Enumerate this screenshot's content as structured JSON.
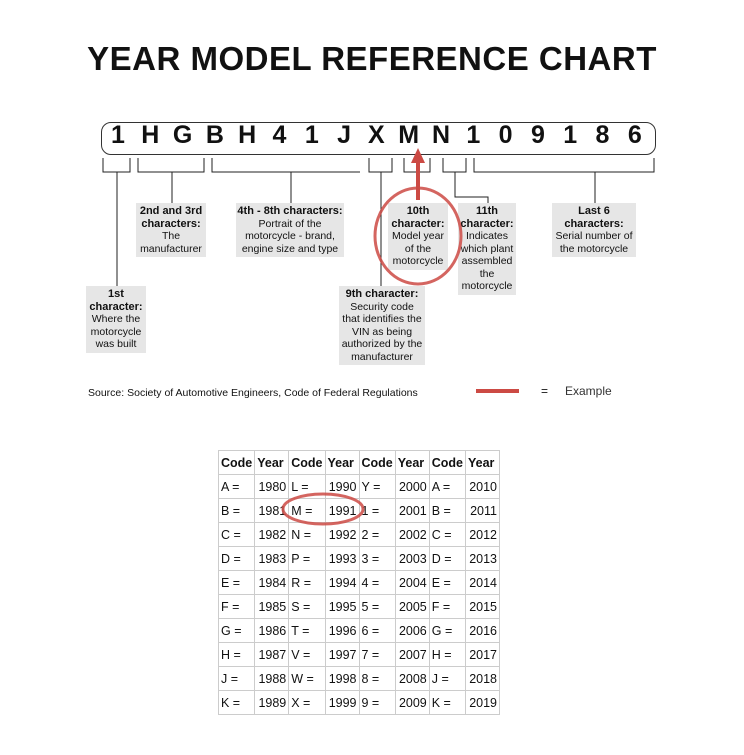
{
  "title": "YEAR MODEL REFERENCE CHART",
  "vin": [
    "1",
    "H",
    "G",
    "B",
    "H",
    "4",
    "1",
    "J",
    "X",
    "M",
    "N",
    "1",
    "0",
    "9",
    "1",
    "8",
    "6"
  ],
  "labels": {
    "first": {
      "head": "1st character:",
      "body": "Where the motorcycle was built"
    },
    "second": {
      "head": "2nd and 3rd characters:",
      "body": "The manufacturer"
    },
    "fourth": {
      "head": "4th - 8th characters:",
      "body": "Portrait of the motorcycle - brand, engine size and type"
    },
    "ninth": {
      "head": "9th character:",
      "body": "Security code that identifies the VIN as being authorized by the manufacturer"
    },
    "tenth": {
      "head": "10th character:",
      "body": "Model year of the motorcycle"
    },
    "eleventh": {
      "head": "11th character:",
      "body": "Indicates which plant assembled the motorcycle"
    },
    "last": {
      "head": "Last 6 characters:",
      "body": "Serial number of the motorcycle"
    }
  },
  "source": "Source:  Society of Automotive Engineers, Code of Federal Regulations",
  "legend": {
    "equals": "=",
    "label": "Example",
    "color": "#cc4a44"
  },
  "table": {
    "headers": [
      "Code",
      "Year",
      "Code",
      "Year",
      "Code",
      "Year",
      "Code",
      "Year"
    ],
    "rows": [
      [
        "A =",
        "1980",
        "L =",
        "1990",
        "Y =",
        "2000",
        "A =",
        "2010"
      ],
      [
        "B =",
        "1981",
        "M =",
        "1991",
        "1 =",
        "2001",
        "B =",
        "2011"
      ],
      [
        "C =",
        "1982",
        "N =",
        "1992",
        "2 =",
        "2002",
        "C =",
        "2012"
      ],
      [
        "D =",
        "1983",
        "P =",
        "1993",
        "3 =",
        "2003",
        "D =",
        "2013"
      ],
      [
        "E =",
        "1984",
        "R =",
        "1994",
        "4 =",
        "2004",
        "E =",
        "2014"
      ],
      [
        "F =",
        "1985",
        "S =",
        "1995",
        "5 =",
        "2005",
        "F =",
        "2015"
      ],
      [
        "G =",
        "1986",
        "T =",
        "1996",
        "6 =",
        "2006",
        "G =",
        "2016"
      ],
      [
        "H =",
        "1987",
        "V =",
        "1997",
        "7 =",
        "2007",
        "H =",
        "2017"
      ],
      [
        "J =",
        "1988",
        "W =",
        "1998",
        "8 =",
        "2008",
        "J =",
        "2018"
      ],
      [
        "K =",
        "1989",
        "X =",
        "1999",
        "9 =",
        "2009",
        "K =",
        "2019"
      ]
    ]
  }
}
